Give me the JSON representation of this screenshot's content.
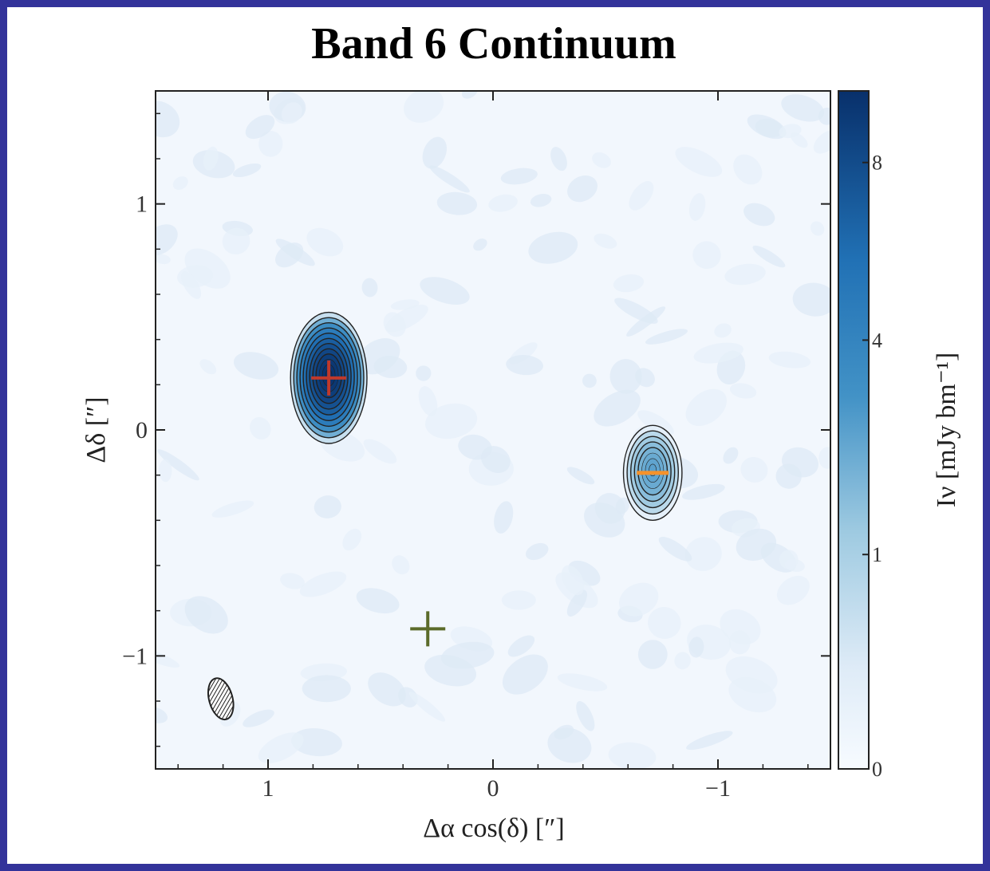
{
  "chart_data": {
    "type": "heatmap",
    "title": "Band 6 Continuum",
    "xlabel": "Δα cos(δ) [″]",
    "ylabel": "Δδ [″]",
    "xlim": [
      1.5,
      -1.5
    ],
    "ylim": [
      -1.5,
      1.5
    ],
    "x_ticks": [
      1,
      0,
      -1
    ],
    "x_tick_labels": [
      "1",
      "0",
      "−1"
    ],
    "y_ticks": [
      1,
      0,
      -1
    ],
    "y_tick_labels": [
      "1",
      "0",
      "−1"
    ],
    "colorbar": {
      "label": "Iν [mJy bm⁻¹]",
      "ticks": [
        0,
        1,
        4,
        8
      ],
      "tick_labels": [
        "0",
        "1",
        "4",
        "8"
      ],
      "range": [
        0,
        10
      ],
      "scale": "sqrt",
      "colormap": "Blues"
    },
    "sources": [
      {
        "x": 0.73,
        "y": 0.23,
        "peak": 10,
        "rx": 0.17,
        "ry": 0.29,
        "rings": 12
      },
      {
        "x": -0.71,
        "y": -0.19,
        "peak": 2.5,
        "rx": 0.13,
        "ry": 0.21,
        "rings": 8
      }
    ],
    "markers": [
      {
        "x": 0.73,
        "y": 0.23,
        "color": "#c0392b",
        "style": "cross"
      },
      {
        "x": -0.71,
        "y": -0.19,
        "color": "#f5922b",
        "style": "bar"
      },
      {
        "x": 0.29,
        "y": -0.88,
        "color": "#5b6b2a",
        "style": "cross"
      }
    ],
    "beam": {
      "x": 1.21,
      "y": -1.19,
      "major": 0.18,
      "minor": 0.09,
      "pa_deg": -15
    }
  },
  "colors": {
    "background_frame": "#33339a",
    "map_low": "#f2f7fd",
    "map_high": "#08306b",
    "contour": "#222222"
  }
}
